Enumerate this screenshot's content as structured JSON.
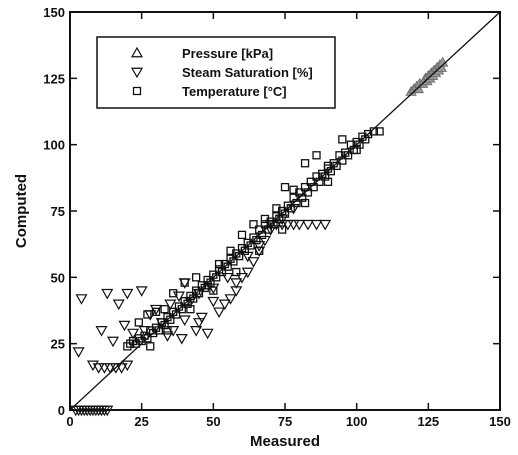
{
  "chart_data": {
    "type": "scatter",
    "xlabel": "Measured",
    "ylabel": "Computed",
    "xlim": [
      0,
      150
    ],
    "ylim": [
      0,
      150
    ],
    "xticks": [
      "0",
      "25",
      "50",
      "75",
      "100",
      "125",
      "150"
    ],
    "yticks": [
      "0",
      "25",
      "50",
      "75",
      "100",
      "125",
      "150"
    ],
    "reference_line": {
      "from": [
        0,
        0
      ],
      "to": [
        150,
        150
      ]
    },
    "legend_position": "top-left",
    "grid": false,
    "series": [
      {
        "name": "Pressure [kPa]",
        "marker": "triangle-up",
        "color": "#9a9a9a",
        "points": [
          [
            119,
            120
          ],
          [
            120,
            121
          ],
          [
            121,
            122
          ],
          [
            121.5,
            121
          ],
          [
            122,
            123
          ],
          [
            123,
            123
          ],
          [
            123.5,
            124
          ],
          [
            124,
            125
          ],
          [
            124.5,
            124
          ],
          [
            125,
            126
          ],
          [
            125.5,
            125
          ],
          [
            126,
            127
          ],
          [
            126.5,
            126
          ],
          [
            127,
            128
          ],
          [
            127.5,
            127
          ],
          [
            128,
            129
          ],
          [
            128.5,
            128
          ],
          [
            129,
            130
          ],
          [
            129.5,
            129
          ],
          [
            130,
            131
          ]
        ]
      },
      {
        "name": "Steam Saturation [%]",
        "marker": "triangle-down",
        "color": "#111111",
        "points": [
          [
            2,
            0
          ],
          [
            3,
            0
          ],
          [
            4,
            0
          ],
          [
            5,
            0
          ],
          [
            6,
            0
          ],
          [
            7,
            0
          ],
          [
            8,
            0
          ],
          [
            9,
            0
          ],
          [
            10,
            0
          ],
          [
            11,
            0
          ],
          [
            12,
            0
          ],
          [
            13,
            0
          ],
          [
            3,
            22
          ],
          [
            4,
            42
          ],
          [
            8,
            17
          ],
          [
            10,
            16
          ],
          [
            11,
            30
          ],
          [
            12,
            16
          ],
          [
            13,
            44
          ],
          [
            14,
            16
          ],
          [
            15,
            26
          ],
          [
            16,
            16
          ],
          [
            17,
            40
          ],
          [
            18,
            16
          ],
          [
            19,
            32
          ],
          [
            20,
            44
          ],
          [
            20,
            17
          ],
          [
            22,
            29
          ],
          [
            25,
            45
          ],
          [
            26,
            30
          ],
          [
            28,
            36
          ],
          [
            30,
            38
          ],
          [
            32,
            33
          ],
          [
            34,
            28
          ],
          [
            35,
            40
          ],
          [
            36,
            30
          ],
          [
            38,
            43
          ],
          [
            39,
            27
          ],
          [
            40,
            34
          ],
          [
            42,
            41
          ],
          [
            44,
            30
          ],
          [
            45,
            33
          ],
          [
            46,
            35
          ],
          [
            48,
            29
          ],
          [
            50,
            41
          ],
          [
            52,
            37
          ],
          [
            54,
            40
          ],
          [
            56,
            42
          ],
          [
            58,
            45
          ],
          [
            60,
            50
          ],
          [
            62,
            52
          ],
          [
            64,
            56
          ],
          [
            66,
            60
          ],
          [
            68,
            64
          ],
          [
            70,
            70
          ],
          [
            72,
            70
          ],
          [
            74,
            70
          ],
          [
            76,
            70
          ],
          [
            78,
            70
          ],
          [
            80,
            70
          ],
          [
            83,
            70
          ],
          [
            86,
            70
          ],
          [
            89,
            70
          ],
          [
            40,
            48
          ],
          [
            45,
            44
          ],
          [
            50,
            46
          ],
          [
            55,
            50
          ],
          [
            58,
            48
          ],
          [
            62,
            58
          ],
          [
            66,
            62
          ],
          [
            70,
            68
          ],
          [
            74,
            72
          ],
          [
            78,
            76
          ]
        ]
      },
      {
        "name": "Temperature [°C]",
        "marker": "square",
        "color": "#111111",
        "points": [
          [
            20,
            24
          ],
          [
            21,
            25
          ],
          [
            22,
            26
          ],
          [
            23,
            25
          ],
          [
            24,
            27
          ],
          [
            25,
            26
          ],
          [
            26,
            28
          ],
          [
            27,
            27
          ],
          [
            28,
            30
          ],
          [
            29,
            29
          ],
          [
            30,
            31
          ],
          [
            31,
            30
          ],
          [
            32,
            33
          ],
          [
            33,
            32
          ],
          [
            34,
            35
          ],
          [
            35,
            34
          ],
          [
            36,
            37
          ],
          [
            37,
            36
          ],
          [
            38,
            39
          ],
          [
            39,
            38
          ],
          [
            40,
            41
          ],
          [
            41,
            40
          ],
          [
            42,
            43
          ],
          [
            43,
            42
          ],
          [
            44,
            45
          ],
          [
            45,
            44
          ],
          [
            46,
            47
          ],
          [
            47,
            46
          ],
          [
            48,
            49
          ],
          [
            49,
            48
          ],
          [
            50,
            51
          ],
          [
            51,
            50
          ],
          [
            52,
            53
          ],
          [
            53,
            52
          ],
          [
            54,
            55
          ],
          [
            55,
            54
          ],
          [
            56,
            57
          ],
          [
            57,
            56
          ],
          [
            58,
            59
          ],
          [
            59,
            58
          ],
          [
            60,
            61
          ],
          [
            61,
            60
          ],
          [
            62,
            63
          ],
          [
            63,
            62
          ],
          [
            64,
            65
          ],
          [
            65,
            64
          ],
          [
            66,
            68
          ],
          [
            67,
            66
          ],
          [
            68,
            70
          ],
          [
            69,
            68
          ],
          [
            70,
            71
          ],
          [
            71,
            70
          ],
          [
            72,
            73
          ],
          [
            73,
            72
          ],
          [
            74,
            75
          ],
          [
            75,
            74
          ],
          [
            76,
            77
          ],
          [
            77,
            76
          ],
          [
            78,
            80
          ],
          [
            79,
            78
          ],
          [
            80,
            82
          ],
          [
            81,
            80
          ],
          [
            82,
            84
          ],
          [
            83,
            82
          ],
          [
            84,
            86
          ],
          [
            85,
            84
          ],
          [
            86,
            88
          ],
          [
            87,
            86
          ],
          [
            88,
            89
          ],
          [
            89,
            88
          ],
          [
            90,
            91
          ],
          [
            91,
            90
          ],
          [
            92,
            93
          ],
          [
            93,
            92
          ],
          [
            94,
            96
          ],
          [
            95,
            94
          ],
          [
            96,
            97
          ],
          [
            97,
            96
          ],
          [
            98,
            100
          ],
          [
            99,
            98
          ],
          [
            100,
            101
          ],
          [
            101,
            100
          ],
          [
            102,
            103
          ],
          [
            103,
            102
          ],
          [
            104,
            104
          ],
          [
            106,
            105
          ],
          [
            108,
            105
          ],
          [
            24,
            33
          ],
          [
            27,
            36
          ],
          [
            30,
            37
          ],
          [
            33,
            38
          ],
          [
            36,
            44
          ],
          [
            40,
            48
          ],
          [
            44,
            50
          ],
          [
            48,
            47
          ],
          [
            52,
            55
          ],
          [
            56,
            60
          ],
          [
            60,
            66
          ],
          [
            64,
            70
          ],
          [
            68,
            72
          ],
          [
            72,
            76
          ],
          [
            75,
            84
          ],
          [
            78,
            83
          ],
          [
            82,
            93
          ],
          [
            86,
            96
          ],
          [
            90,
            92
          ],
          [
            95,
            102
          ],
          [
            100,
            98
          ],
          [
            28,
            24
          ],
          [
            34,
            30
          ],
          [
            42,
            38
          ],
          [
            50,
            45
          ],
          [
            58,
            52
          ],
          [
            66,
            60
          ],
          [
            74,
            68
          ],
          [
            82,
            78
          ],
          [
            90,
            86
          ]
        ]
      }
    ]
  }
}
